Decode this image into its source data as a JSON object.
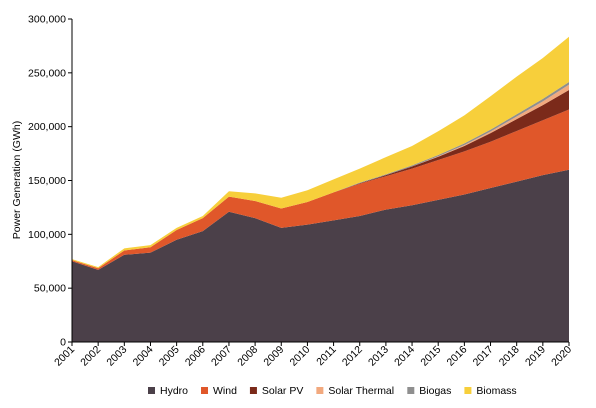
{
  "chart_data": {
    "type": "area",
    "stacked": true,
    "title": "",
    "xlabel": "",
    "ylabel": "Power Generation (GWh)",
    "ylim": [
      0,
      300000
    ],
    "yticks": [
      "0",
      "50,000",
      "100,000",
      "150,000",
      "200,000",
      "250,000",
      "300,000"
    ],
    "ytick_values": [
      0,
      50000,
      100000,
      150000,
      200000,
      250000,
      300000
    ],
    "grid": false,
    "legend_position": "bottom",
    "categories": [
      "2001",
      "2002",
      "2003",
      "2004",
      "2005",
      "2006",
      "2007",
      "2008",
      "2009",
      "2010",
      "2011",
      "2012",
      "2013",
      "2014",
      "2015",
      "2016",
      "2017",
      "2018",
      "2019",
      "2020"
    ],
    "series": [
      {
        "name": "Hydro",
        "color": "#4b4049",
        "values": [
          75000,
          67000,
          81000,
          83000,
          95000,
          103000,
          121000,
          115000,
          106000,
          109000,
          113000,
          117000,
          123000,
          127000,
          132000,
          137000,
          143000,
          149000,
          155000,
          160000
        ]
      },
      {
        "name": "Wind",
        "color": "#e0572a",
        "values": [
          1000,
          1500,
          4000,
          5000,
          9000,
          12000,
          14000,
          16000,
          18000,
          21000,
          26000,
          30000,
          31000,
          34000,
          37000,
          40000,
          43000,
          47000,
          51000,
          56000
        ]
      },
      {
        "name": "Solar PV",
        "color": "#7b2a1a",
        "values": [
          0,
          0,
          0,
          0,
          0,
          0,
          0,
          0,
          0,
          0,
          0,
          500,
          1000,
          2000,
          3000,
          5000,
          8000,
          11000,
          14000,
          18000
        ]
      },
      {
        "name": "Solar Thermal",
        "color": "#f2a97e",
        "values": [
          0,
          0,
          0,
          0,
          0,
          0,
          0,
          0,
          0,
          0,
          0,
          0,
          0,
          0,
          500,
          1000,
          1500,
          2500,
          3500,
          5000
        ]
      },
      {
        "name": "Biogas",
        "color": "#8f8f8f",
        "values": [
          0,
          0,
          0,
          0,
          0,
          0,
          0,
          0,
          0,
          0,
          0,
          500,
          700,
          1000,
          1200,
          1500,
          1700,
          2000,
          2300,
          2500
        ]
      },
      {
        "name": "Biomass",
        "color": "#f7cf3b",
        "values": [
          1000,
          1000,
          2000,
          2000,
          2000,
          2000,
          5000,
          7000,
          10000,
          11000,
          12000,
          13000,
          16000,
          18000,
          22000,
          26000,
          31000,
          35000,
          38000,
          42000
        ]
      }
    ]
  }
}
